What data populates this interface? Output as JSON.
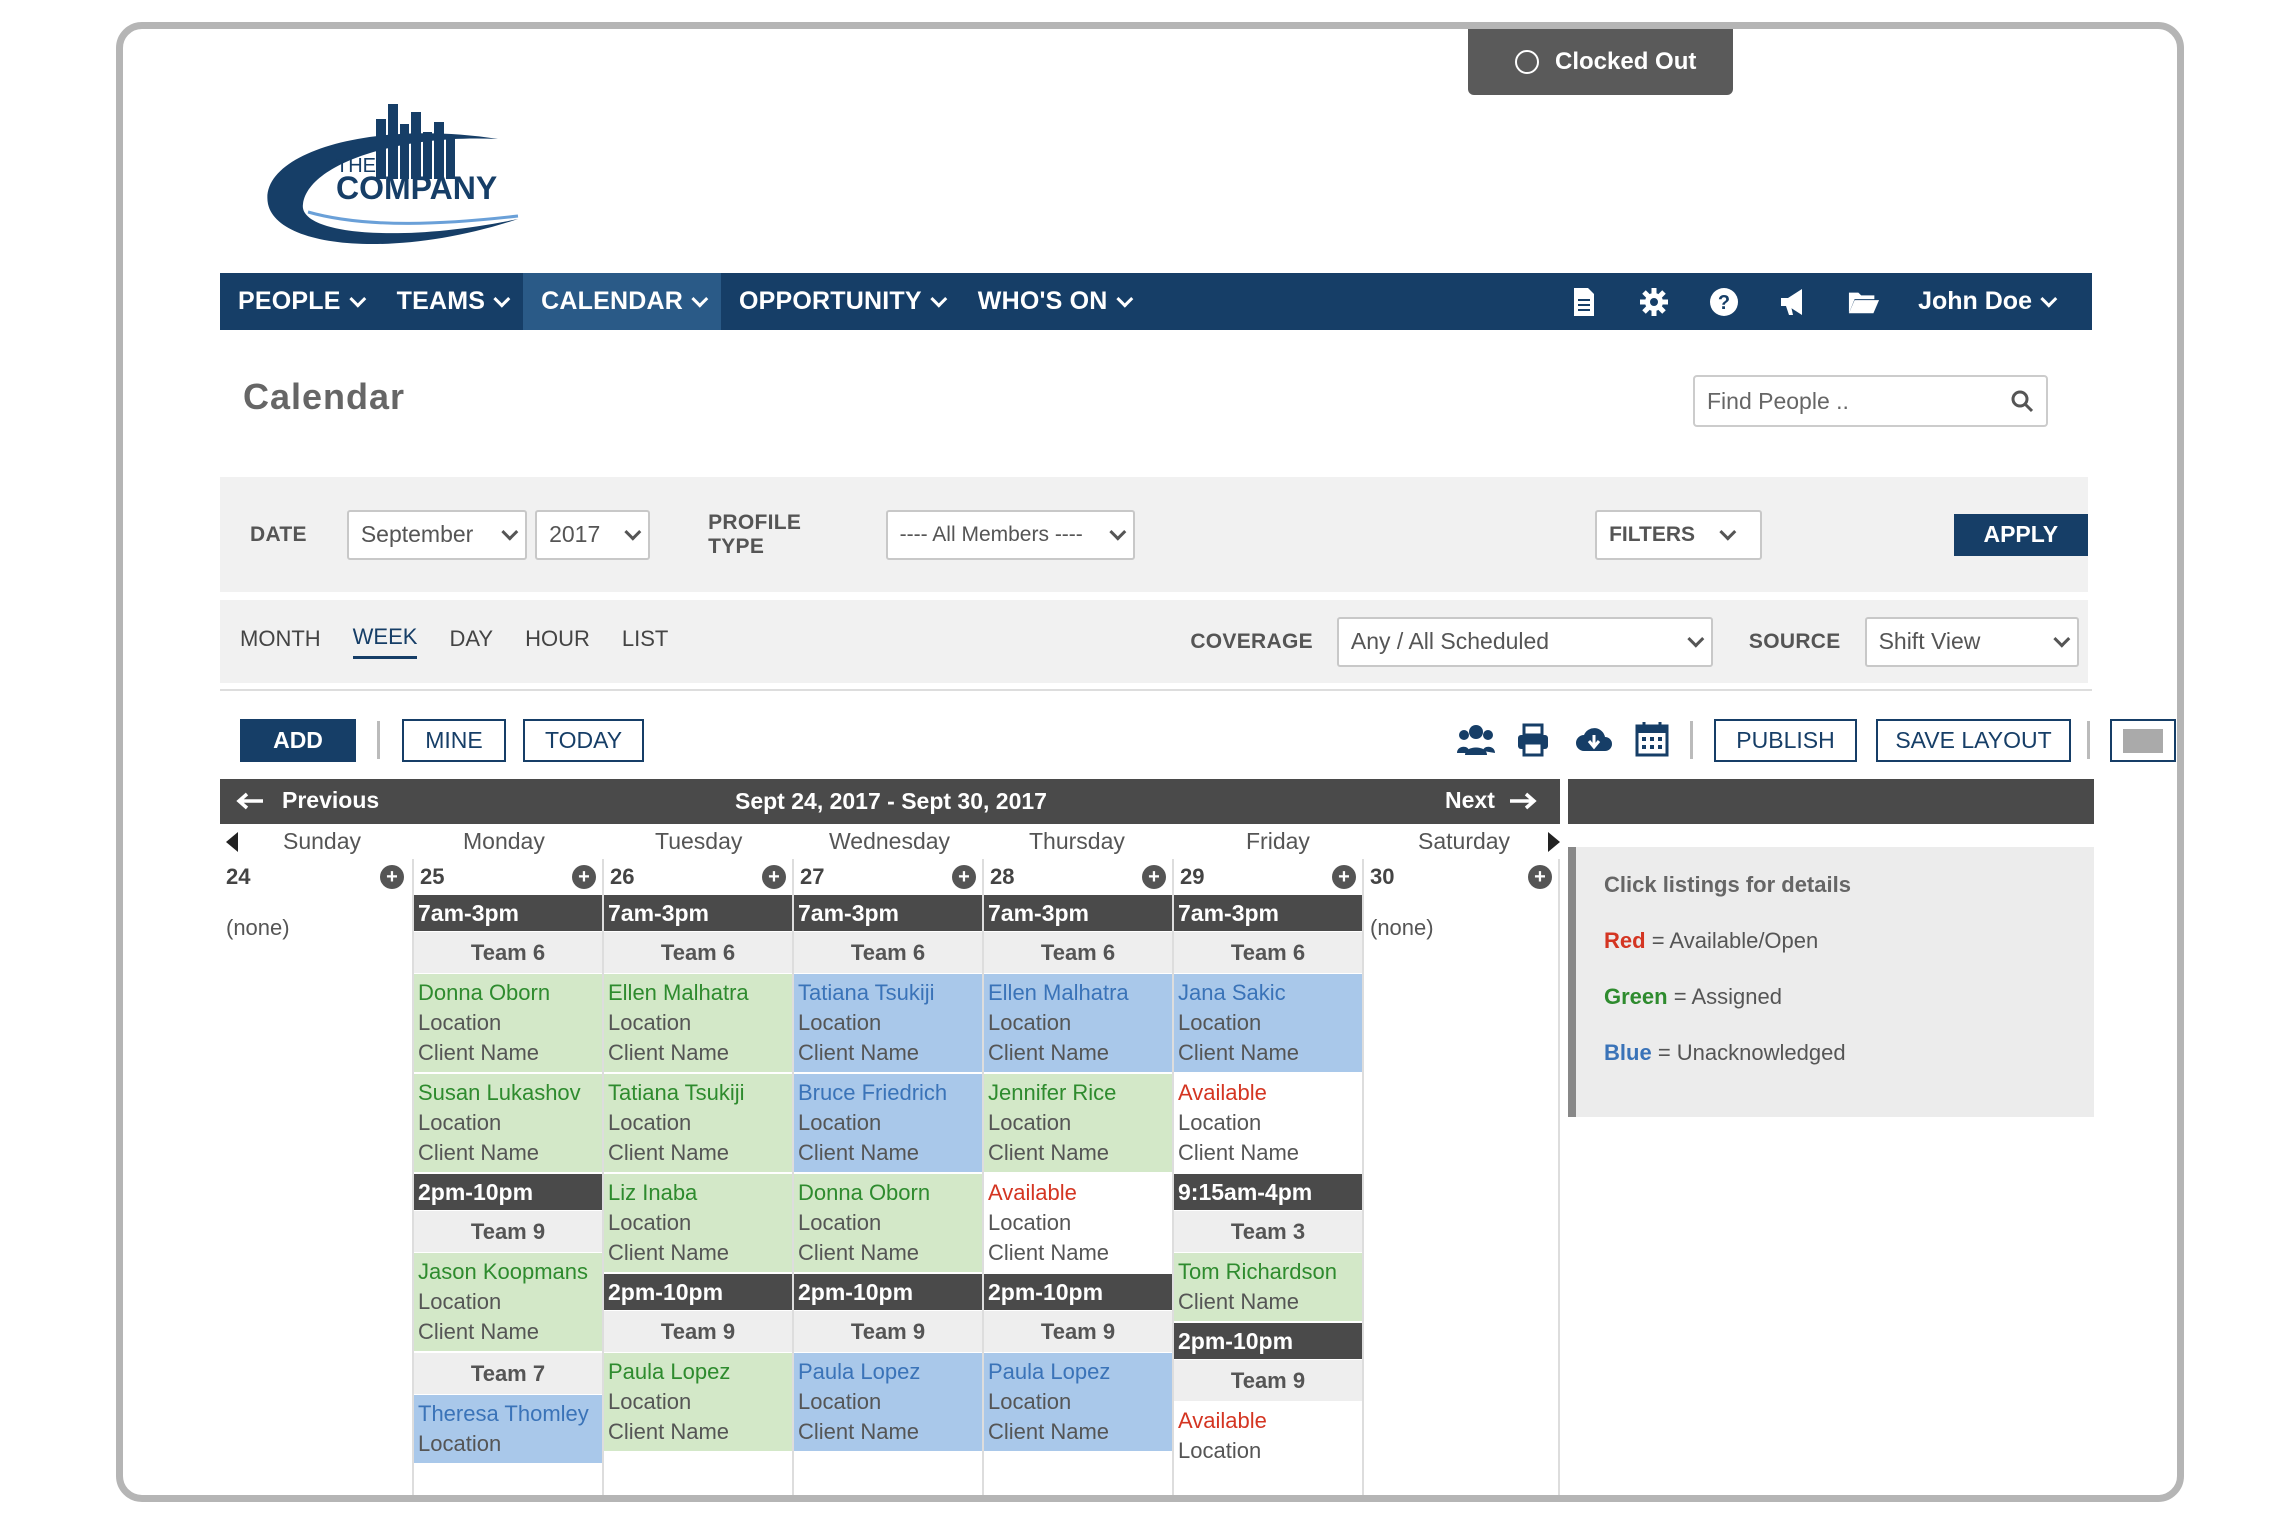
{
  "clock": {
    "status": "Clocked Out"
  },
  "logo": {
    "the": "THE",
    "company": "COMPANY"
  },
  "nav": {
    "items": [
      "PEOPLE",
      "TEAMS",
      "CALENDAR",
      "OPPORTUNITY",
      "WHO'S ON"
    ],
    "active": "CALENDAR",
    "icons": [
      "document-icon",
      "gear-icon",
      "help-icon",
      "megaphone-icon",
      "folder-icon"
    ],
    "user": "John Doe"
  },
  "page": {
    "title": "Calendar",
    "search_placeholder": "Find People .."
  },
  "filters": {
    "date_label": "DATE",
    "month": "September",
    "year": "2017",
    "profile_type_label": "PROFILE TYPE",
    "profile_type": "---- All Members ----",
    "filters_label": "FILTERS",
    "apply": "APPLY"
  },
  "views": {
    "tabs": [
      "MONTH",
      "WEEK",
      "DAY",
      "HOUR",
      "LIST"
    ],
    "active": "WEEK",
    "coverage_label": "COVERAGE",
    "coverage": "Any / All Scheduled",
    "source_label": "SOURCE",
    "source": "Shift View"
  },
  "toolbar": {
    "add": "ADD",
    "mine": "MINE",
    "today": "TODAY",
    "publish": "PUBLISH",
    "save_layout": "SAVE LAYOUT"
  },
  "calendar": {
    "previous": "Previous",
    "next": "Next",
    "range": "Sept 24, 2017 - Sept 30, 2017",
    "days": [
      "Sunday",
      "Monday",
      "Tuesday",
      "Wednesday",
      "Thursday",
      "Friday",
      "Saturday"
    ],
    "dates": [
      "24",
      "25",
      "26",
      "27",
      "28",
      "29",
      "30"
    ],
    "none": "(none)",
    "loc": "Location",
    "client": "Client Name"
  },
  "shifts": {
    "mon": {
      "t1": "7am-3pm",
      "team1": "Team 6",
      "e1": "Donna Oborn",
      "e2": "Susan Lukashov",
      "t2": "2pm-10pm",
      "team2": "Team 9",
      "e3": "Jason Koopmans",
      "team3": "Team 7",
      "e4": "Theresa Thomley"
    },
    "tue": {
      "t1": "7am-3pm",
      "team1": "Team 6",
      "e1": "Ellen Malhatra",
      "e2": "Tatiana Tsukiji",
      "e3": "Liz Inaba",
      "t2": "2pm-10pm",
      "team2": "Team 9",
      "e4": "Paula Lopez"
    },
    "wed": {
      "t1": "7am-3pm",
      "team1": "Team 6",
      "e1": "Tatiana Tsukiji",
      "e2": "Bruce Friedrich",
      "e3": "Donna Oborn",
      "t2": "2pm-10pm",
      "team2": "Team 9",
      "e4": "Paula Lopez"
    },
    "thu": {
      "t1": "7am-3pm",
      "team1": "Team 6",
      "e1": "Ellen Malhatra",
      "e2": "Jennifer Rice",
      "e3": "Available",
      "t2": "2pm-10pm",
      "team2": "Team 9",
      "e4": "Paula Lopez"
    },
    "fri": {
      "t1": "7am-3pm",
      "team1": "Team 6",
      "e1": "Jana Sakic",
      "e2": "Available",
      "t2": "9:15am-4pm",
      "team2": "Team 3",
      "e3": "Tom Richardson",
      "t3": "2pm-10pm",
      "team3": "Team 9",
      "e4": "Available"
    }
  },
  "legend": {
    "title": "Click listings for details",
    "red": "Red",
    "red_desc": "= Available/Open",
    "green": "Green",
    "green_desc": "= Assigned",
    "blue": "Blue",
    "blue_desc": "= Unacknowledged"
  },
  "colors": {
    "navy": "#163e67",
    "assigned": "#2e8b2e",
    "unacknowledged": "#3a73b8",
    "open": "#d43522"
  }
}
